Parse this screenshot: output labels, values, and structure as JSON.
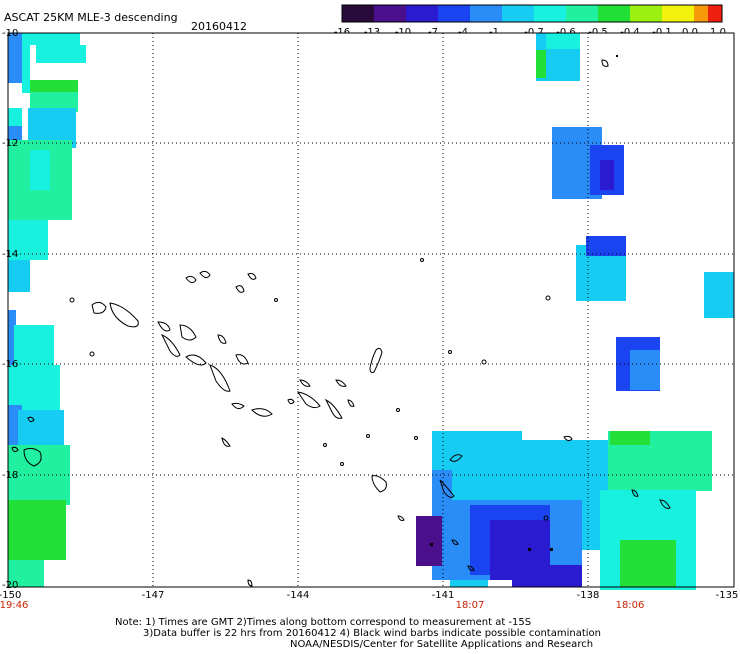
{
  "header": {
    "title": "ASCAT 25KM MLE-3 descending",
    "date": "20160412"
  },
  "colorbar": {
    "labels": [
      "-16",
      "-13",
      "-10",
      "-7",
      "-4",
      "-1",
      "-0.7",
      "-0.6",
      "-0.5",
      "-0.4",
      "-0.1",
      "0.0",
      "1.0"
    ],
    "colors": [
      "#2a0a3a",
      "#4a108c",
      "#2a1ad0",
      "#1a44f0",
      "#2a8cf6",
      "#16ccf2",
      "#18f0e0",
      "#20f0a0",
      "#22e038",
      "#9cf010",
      "#f2f20c",
      "#f89a08",
      "#f02010"
    ]
  },
  "axes": {
    "lat_labels": [
      "-10",
      "-12",
      "-14",
      "-16",
      "-18",
      "-20"
    ],
    "lon_labels": [
      "-150",
      "-147",
      "-144",
      "-141",
      "-138",
      "-135"
    ]
  },
  "pass_times": [
    "19:46",
    "18:07",
    "18:06"
  ],
  "notes": {
    "line1": "Note: 1) Times are GMT 2)Times along bottom correspond to measurement at -15S",
    "line2": "3)Data buffer is 22 hrs from 20160412 4) Black wind barbs indicate possible contamination",
    "line3": "NOAA/NESDIS/Center for Satellite Applications and Research"
  }
}
